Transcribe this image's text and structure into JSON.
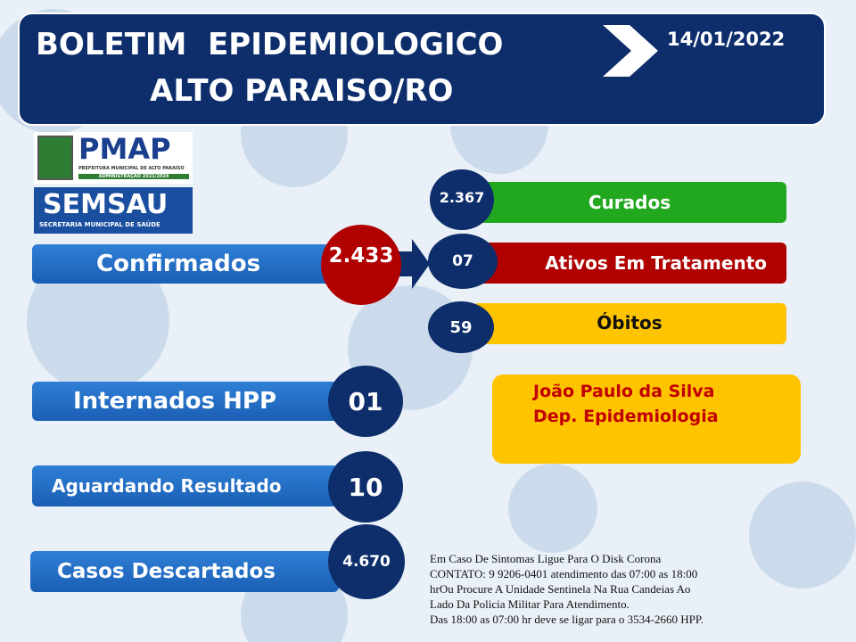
{
  "header": {
    "title_line1": "BOLETIM  EPIDEMIOLOGICO",
    "title_line2": "ALTO PARAISO/RO",
    "date": "14/01/2022"
  },
  "logos": {
    "pmap": "PMAP",
    "pmap_subtitle": "PREFEITURA MUNICIPAL DE ALTO PARAÍSO",
    "pmap_term": "ADMINISTRAÇÃO 2021/2024",
    "semsau": "SEMSAU",
    "semsau_subtitle": "SECRETARIA MUNICIPAL DE SAÚDE"
  },
  "stats": {
    "confirmados": {
      "label": "Confirmados",
      "value": "2.433"
    },
    "curados": {
      "label": "Curados",
      "value": "2.367"
    },
    "ativos": {
      "label": "Ativos Em Tratamento",
      "value": "07"
    },
    "obitos": {
      "label": "Óbitos",
      "value": "59"
    },
    "internados": {
      "label": "Internados HPP",
      "value": "01"
    },
    "aguardando": {
      "label": "Aguardando Resultado",
      "value": "10"
    },
    "descartados": {
      "label": "Casos Descartados",
      "value": "4.670"
    }
  },
  "responsible": {
    "name": "João Paulo da Silva",
    "role": "Dep. Epidemiologia"
  },
  "contact": {
    "lines": [
      "Em Caso De Sintomas Ligue Para O Disk Corona",
      "CONTATO: 9 9206-0401 atendimento das 07:00 as 18:00",
      "hrOu Procure A Unidade Sentinela Na Rua Candeias Ao",
      "Lado Da Policia Militar Para Atendimento.",
      "Das 18:00 as 07:00 hr deve se ligar para o 3534-2660 HPP."
    ]
  }
}
